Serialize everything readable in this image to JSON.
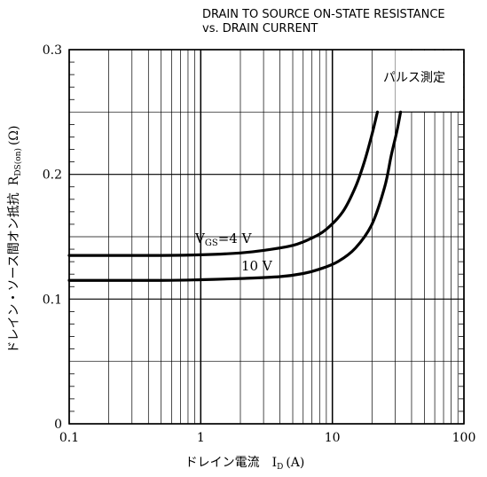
{
  "chart_data": {
    "type": "line",
    "title_line1": "DRAIN TO SOURCE ON-STATE RESISTANCE",
    "title_line2": "vs. DRAIN CURRENT",
    "xlabel_jp": "ドレイン電流",
    "xlabel_sym": "I",
    "xlabel_sub": "D",
    "xlabel_unit": "(A)",
    "ylabel_jp": "ドレイン・ソース間オン抵抗",
    "ylabel_sym": "R",
    "ylabel_sub": "DS(on)",
    "ylabel_unit": "(Ω)",
    "x_scale": "log",
    "xlim": [
      0.1,
      100
    ],
    "ylim": [
      0,
      0.3
    ],
    "x_ticks": [
      "0.1",
      "1",
      "10",
      "100"
    ],
    "y_ticks": [
      "0",
      "0.1",
      "0.2",
      "0.3"
    ],
    "grid": true,
    "note": "パルス測定",
    "series": [
      {
        "name": "V_GS=4 V",
        "label_main": "V",
        "label_sub": "GS",
        "label_rest": "=4 V",
        "points": [
          [
            0.1,
            0.135
          ],
          [
            0.5,
            0.135
          ],
          [
            1,
            0.1355
          ],
          [
            2,
            0.137
          ],
          [
            3,
            0.139
          ],
          [
            5,
            0.143
          ],
          [
            7,
            0.149
          ],
          [
            9,
            0.156
          ],
          [
            12,
            0.17
          ],
          [
            15,
            0.19
          ],
          [
            17.5,
            0.21
          ],
          [
            20,
            0.232
          ],
          [
            22,
            0.25
          ]
        ]
      },
      {
        "name": "10 V",
        "label_main": "10 V",
        "label_sub": "",
        "label_rest": "",
        "points": [
          [
            0.1,
            0.115
          ],
          [
            0.5,
            0.115
          ],
          [
            1,
            0.1155
          ],
          [
            2,
            0.1165
          ],
          [
            4,
            0.118
          ],
          [
            6,
            0.1205
          ],
          [
            8,
            0.124
          ],
          [
            11,
            0.13
          ],
          [
            15,
            0.141
          ],
          [
            20,
            0.16
          ],
          [
            25,
            0.19
          ],
          [
            28,
            0.215
          ],
          [
            31,
            0.235
          ],
          [
            33,
            0.25
          ]
        ]
      }
    ]
  }
}
